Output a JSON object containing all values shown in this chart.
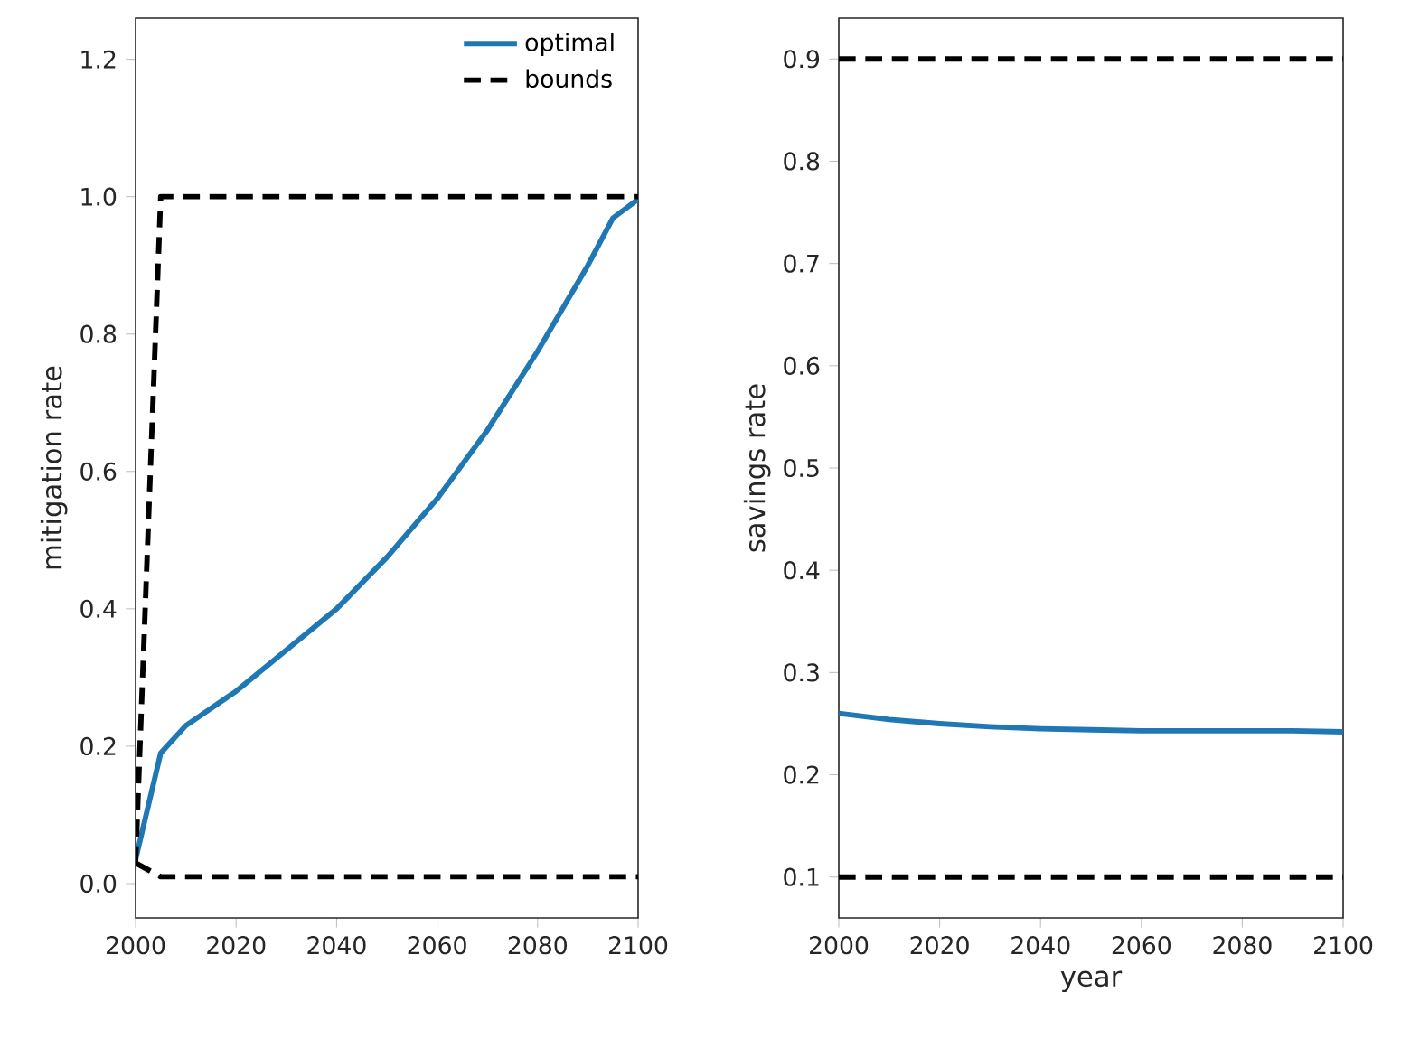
{
  "chart_data": [
    {
      "type": "line",
      "ylabel": "mitigation rate",
      "xlim": [
        2000,
        2100
      ],
      "ylim": [
        -0.05,
        1.26
      ],
      "xticks": [
        2000,
        2020,
        2040,
        2060,
        2080,
        2100
      ],
      "yticks": [
        {
          "value": 0,
          "label": "0.0"
        },
        0.2,
        0.4,
        0.6,
        0.8,
        {
          "value": 1,
          "label": "1.0"
        },
        1.2
      ],
      "legend": "top right",
      "grid": false,
      "marker": "none",
      "tick_labels": "xy",
      "series": [
        {
          "name": "optimal",
          "color": "#1f77b4",
          "line_style": "solid",
          "x": [
            2000,
            2005,
            2010,
            2020,
            2030,
            2040,
            2050,
            2060,
            2070,
            2080,
            2090,
            2095,
            2100
          ],
          "values": [
            0.035,
            0.19,
            0.23,
            0.28,
            0.34,
            0.4,
            0.475,
            0.56,
            0.66,
            0.775,
            0.9,
            0.969,
            0.996
          ]
        },
        {
          "name": "bounds",
          "color": "#000000",
          "line_style": "dashed",
          "x": [
            2000,
            2005,
            2100
          ],
          "values": [
            0.03,
            1.0,
            1.0
          ]
        },
        {
          "color": "#000000",
          "line_style": "dashed",
          "x": [
            2000,
            2005,
            2100
          ],
          "values": [
            0.03,
            0.01,
            0.01
          ]
        }
      ]
    },
    {
      "type": "line",
      "xlabel": "year",
      "ylabel": "savings rate",
      "xlim": [
        2000,
        2100
      ],
      "ylim": [
        0.06,
        0.94
      ],
      "xticks": [
        2000,
        2020,
        2040,
        2060,
        2080,
        2100
      ],
      "yticks": [
        0.1,
        0.2,
        0.3,
        0.4,
        0.5,
        0.6,
        0.7,
        0.8,
        0.9
      ],
      "legend": false,
      "grid": false,
      "marker": "none",
      "series": [
        {
          "color": "#1f77b4",
          "line_style": "solid",
          "x": [
            2000,
            2010,
            2020,
            2030,
            2040,
            2050,
            2060,
            2070,
            2080,
            2090,
            2100
          ],
          "values": [
            0.26,
            0.254,
            0.25,
            0.247,
            0.245,
            0.244,
            0.243,
            0.243,
            0.243,
            0.243,
            0.242
          ]
        },
        {
          "color": "#000000",
          "line_style": "dashed",
          "x": [
            2000,
            2100
          ],
          "values": [
            0.9,
            0.9
          ]
        },
        {
          "color": "#000000",
          "line_style": "dashed",
          "x": [
            2000,
            2100
          ],
          "values": [
            0.1,
            0.1
          ]
        }
      ]
    }
  ]
}
